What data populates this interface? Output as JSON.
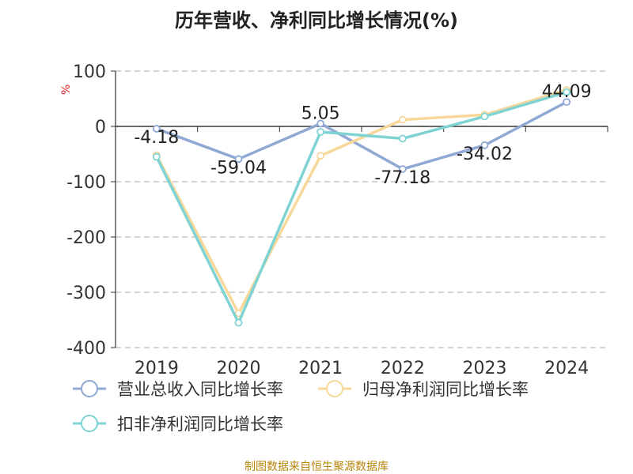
{
  "title": "历年营收、净利同比增长情况(%)",
  "y_unit": "%",
  "source_text": "制图数据来自恒生聚源数据库",
  "colors": {
    "revenue": "#8fa8d4",
    "net_profit": "#f8d89a",
    "deducted_net_profit": "#7fd3d2",
    "grid": "#bbbbbb",
    "axis": "#333333",
    "source": "#b8860b"
  },
  "chart_data": {
    "type": "line",
    "categories": [
      "2019",
      "2020",
      "2021",
      "2022",
      "2023",
      "2024"
    ],
    "ylim": [
      -400,
      100
    ],
    "yticks": [
      100,
      0,
      -100,
      -200,
      -300,
      -400
    ],
    "grid": true,
    "legend_position": "bottom-left",
    "series": [
      {
        "name": "营业总收入同比增长率",
        "values": [
          -4.18,
          -59.04,
          5.05,
          -77.18,
          -34.02,
          44.09
        ],
        "labels": [
          "-4.18",
          "-59.04",
          "5.05",
          "-77.18",
          "-34.02",
          "44.09"
        ]
      },
      {
        "name": "归母净利润同比增长率",
        "values": [
          -52,
          -338,
          -53,
          12,
          21,
          66
        ]
      },
      {
        "name": "扣非净利润同比增长率",
        "values": [
          -55,
          -355,
          -10,
          -22,
          18,
          62
        ]
      }
    ]
  }
}
